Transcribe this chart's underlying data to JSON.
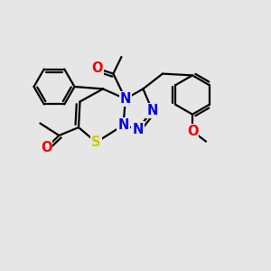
{
  "bg_color": "#e6e6e6",
  "atom_colors": {
    "N": "#0000ee",
    "O": "#ee0000",
    "S": "#cccc00"
  },
  "bond_color": "#000000",
  "bond_width": 1.6,
  "font_size_atom": 10.5
}
